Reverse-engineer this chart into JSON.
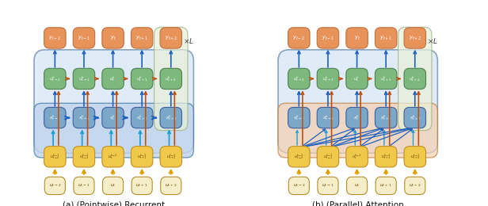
{
  "fig_width": 6.16,
  "fig_height": 2.6,
  "dpi": 100,
  "bg_color": "#ffffff",
  "panel_a_title": "(a) (Pointwise) Recurrent",
  "panel_b_title": "(b) (Parallel) Attention",
  "colors": {
    "orange_box": "#E8935A",
    "orange_edge": "#C07040",
    "green_box": "#7DB87D",
    "green_edge": "#508050",
    "blue_box": "#7BA7C8",
    "blue_edge": "#4060A0",
    "yellow_box": "#F0C84A",
    "yellow_edge": "#C09020",
    "cream_box": "#F5EEC8",
    "cream_edge": "#B09030",
    "outer_face_a": "#D8E8F5",
    "outer_edge_a": "#7090B0",
    "inner_face_a": "#C0D4EC",
    "inner_edge_a": "#5080B0",
    "outer_face_b": "#D8E8F5",
    "outer_edge_b": "#7090B0",
    "inner_face_b": "#F5D0B0",
    "inner_edge_b": "#C08040",
    "xL_box_face": "#E8F0D8",
    "xL_box_edge": "#90A870",
    "arrow_blue": "#2060C0",
    "arrow_orange": "#C05010",
    "arrow_cyan": "#20A0D0",
    "arrow_yellow": "#E0A000"
  },
  "time_labels": [
    "t-2",
    "t-1",
    "t",
    "t+1",
    "t+2"
  ],
  "xL_label": "\\times L"
}
